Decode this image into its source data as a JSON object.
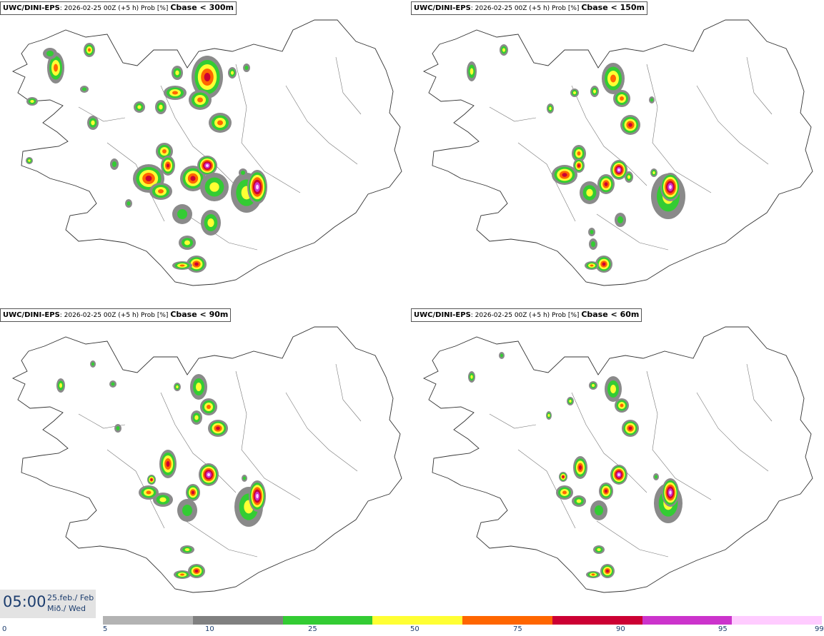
{
  "panels": [
    {
      "model": "UWC/DINI-EPS",
      "run": ": 2026-02-25 00Z (+5 h) Prob [%]",
      "cbase": "Cbase < 300m"
    },
    {
      "model": "UWC/DINI-EPS",
      "run": ": 2026-02-25 00Z (+5 h) Prob [%]",
      "cbase": "Cbase < 150m"
    },
    {
      "model": "UWC/DINI-EPS",
      "run": ": 2026-02-25 00Z (+5 h) Prob [%]",
      "cbase": "Cbase < 90m"
    },
    {
      "model": "UWC/DINI-EPS",
      "run": ": 2026-02-25 00Z (+5 h) Prob [%]",
      "cbase": "Cbase < 60m"
    }
  ],
  "time": {
    "hour": "05:00",
    "date": "25.feb./ Feb",
    "day": "Mið./ Wed"
  },
  "colorbar": {
    "ticks": [
      "0",
      "5",
      "10",
      "25",
      "50",
      "75",
      "90",
      "95",
      "99"
    ],
    "colors": [
      "#ffffff",
      "#b3b3b3",
      "#808080",
      "#33cc33",
      "#ffff33",
      "#ff6600",
      "#cc0033",
      "#cc33cc",
      "#ffccff"
    ]
  }
}
